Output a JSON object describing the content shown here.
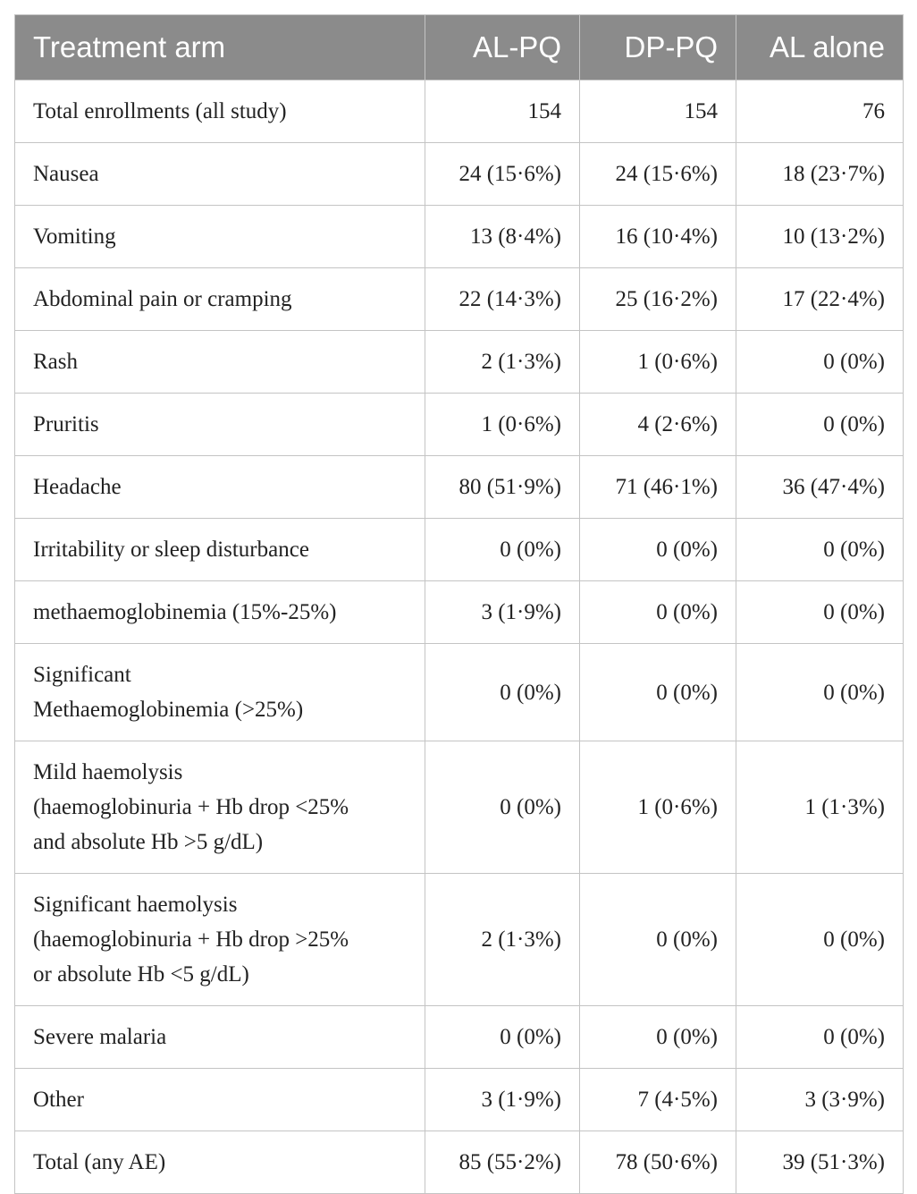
{
  "table": {
    "header": [
      "Treatment arm",
      "AL-PQ",
      "DP-PQ",
      "AL alone"
    ],
    "rows": [
      [
        "Total enrollments (all study)",
        "154",
        "154",
        "76"
      ],
      [
        "Nausea",
        "24 (15·6%)",
        "24 (15·6%)",
        "18 (23·7%)"
      ],
      [
        "Vomiting",
        "13 (8·4%)",
        "16 (10·4%)",
        "10 (13·2%)"
      ],
      [
        "Abdominal pain or cramping",
        "22 (14·3%)",
        "25 (16·2%)",
        "17 (22·4%)"
      ],
      [
        "Rash",
        "2 (1·3%)",
        "1 (0·6%)",
        "0 (0%)"
      ],
      [
        "Pruritis",
        "1 (0·6%)",
        "4 (2·6%)",
        "0 (0%)"
      ],
      [
        "Headache",
        "80 (51·9%)",
        "71 (46·1%)",
        "36 (47·4%)"
      ],
      [
        "Irritability or sleep disturbance",
        "0 (0%)",
        "0 (0%)",
        "0 (0%)"
      ],
      [
        "methaemoglobinemia (15%-25%)",
        "3 (1·9%)",
        "0 (0%)",
        "0 (0%)"
      ],
      [
        "Significant\nMethaemoglobinemia (>25%)",
        "0 (0%)",
        "0 (0%)",
        "0 (0%)"
      ],
      [
        "Mild haemolysis\n(haemoglobinuria + Hb drop <25%\nand absolute Hb >5 g/dL)",
        "0 (0%)",
        "1 (0·6%)",
        "1 (1·3%)"
      ],
      [
        "Significant haemolysis\n(haemoglobinuria + Hb drop >25%\nor absolute Hb <5 g/dL)",
        "2 (1·3%)",
        "0 (0%)",
        "0 (0%)"
      ],
      [
        "Severe malaria",
        "0 (0%)",
        "0 (0%)",
        "0 (0%)"
      ],
      [
        "Other",
        "3 (1·9%)",
        "7 (4·5%)",
        "3 (3·9%)"
      ],
      [
        "Total (any AE)",
        "85 (55·2%)",
        "78 (50·6%)",
        "39 (51·3%)"
      ]
    ]
  }
}
